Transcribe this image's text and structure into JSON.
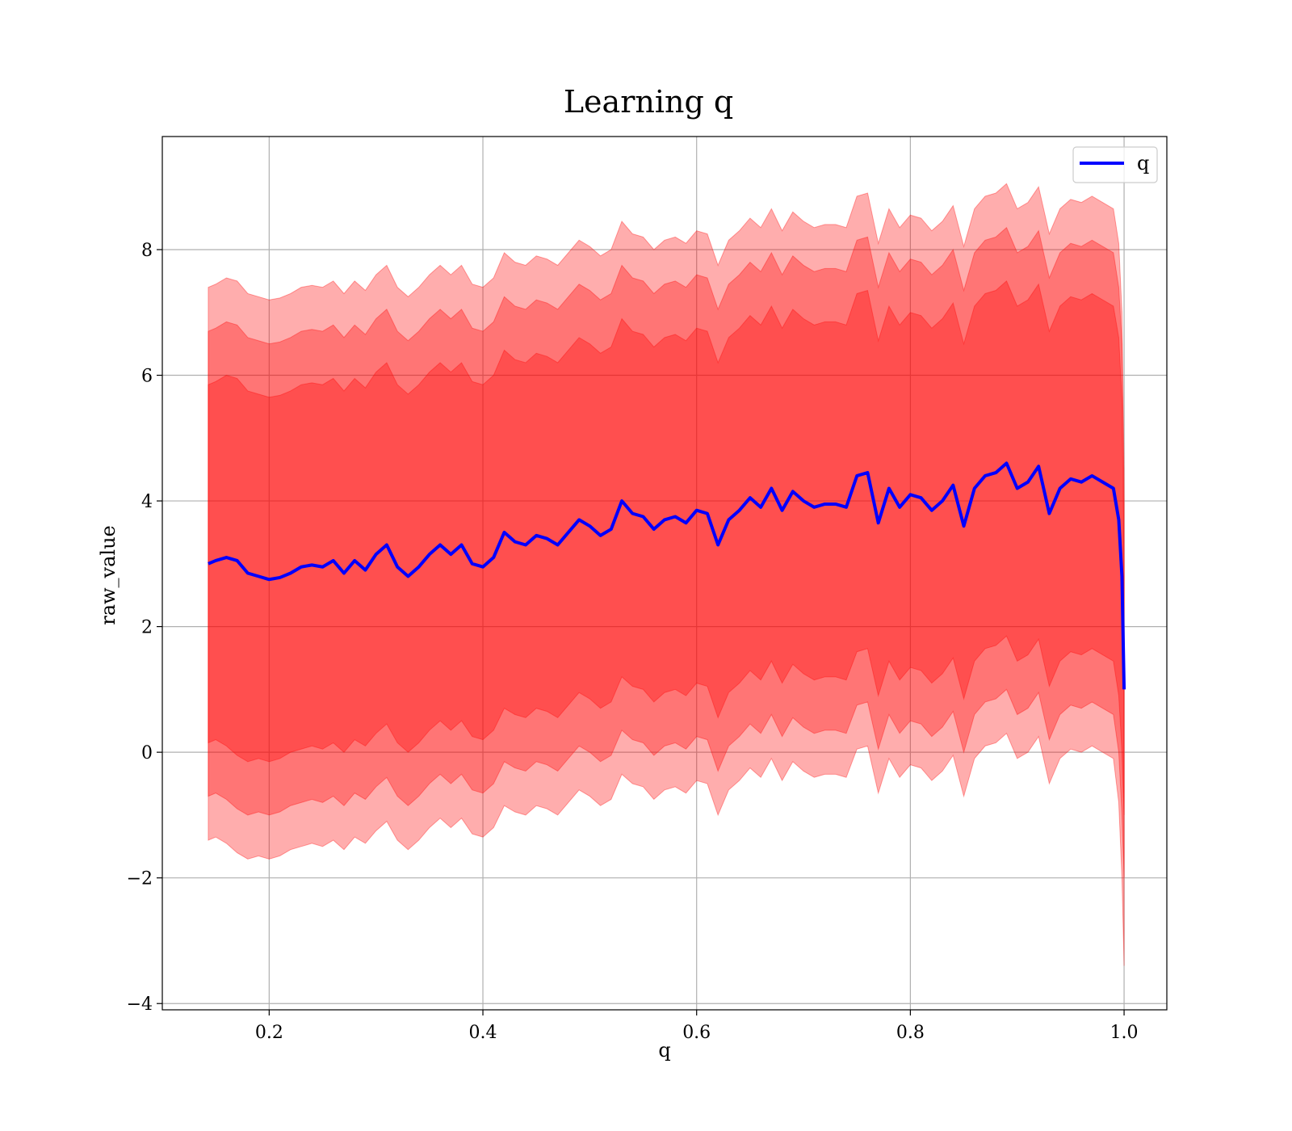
{
  "chart_data": {
    "type": "line",
    "title": "Learning q",
    "xlabel": "q",
    "ylabel": "raw_value",
    "xlim": [
      0.1,
      1.04
    ],
    "ylim": [
      -4.1,
      9.8
    ],
    "xticks": [
      0.2,
      0.4,
      0.6,
      0.8,
      1.0
    ],
    "xtick_labels": [
      "0.2",
      "0.4",
      "0.6",
      "0.8",
      "1.0"
    ],
    "yticks": [
      -4,
      -2,
      0,
      2,
      4,
      6,
      8
    ],
    "ytick_labels": [
      "−4",
      "−2",
      "0",
      "2",
      "4",
      "6",
      "8"
    ],
    "grid": true,
    "legend": {
      "position": "top-right",
      "entries": [
        "q"
      ]
    },
    "colors": {
      "line": "#0000ff",
      "band": "#ff0000",
      "band_edge": "#ff0000",
      "grid": "#b0b0b0"
    },
    "series": [
      {
        "name": "q",
        "x": [
          0.143,
          0.15,
          0.16,
          0.17,
          0.18,
          0.19,
          0.2,
          0.21,
          0.22,
          0.23,
          0.24,
          0.25,
          0.26,
          0.27,
          0.28,
          0.29,
          0.3,
          0.31,
          0.32,
          0.33,
          0.34,
          0.35,
          0.36,
          0.37,
          0.38,
          0.39,
          0.4,
          0.41,
          0.42,
          0.43,
          0.44,
          0.45,
          0.46,
          0.47,
          0.48,
          0.49,
          0.5,
          0.51,
          0.52,
          0.53,
          0.54,
          0.55,
          0.56,
          0.57,
          0.58,
          0.59,
          0.6,
          0.61,
          0.62,
          0.63,
          0.64,
          0.65,
          0.66,
          0.67,
          0.68,
          0.69,
          0.7,
          0.71,
          0.72,
          0.73,
          0.74,
          0.75,
          0.76,
          0.77,
          0.78,
          0.79,
          0.8,
          0.81,
          0.82,
          0.83,
          0.84,
          0.85,
          0.86,
          0.87,
          0.88,
          0.89,
          0.9,
          0.91,
          0.92,
          0.93,
          0.94,
          0.95,
          0.96,
          0.97,
          0.98,
          0.99,
          0.995,
          0.998,
          1.0
        ],
        "y": [
          3.0,
          3.05,
          3.1,
          3.05,
          2.85,
          2.8,
          2.75,
          2.78,
          2.85,
          2.95,
          2.98,
          2.95,
          3.05,
          2.85,
          3.05,
          2.9,
          3.15,
          3.3,
          2.95,
          2.8,
          2.95,
          3.15,
          3.3,
          3.15,
          3.3,
          3.0,
          2.95,
          3.1,
          3.5,
          3.35,
          3.3,
          3.45,
          3.4,
          3.3,
          3.5,
          3.7,
          3.6,
          3.45,
          3.55,
          4.0,
          3.8,
          3.75,
          3.55,
          3.7,
          3.75,
          3.65,
          3.85,
          3.8,
          3.3,
          3.7,
          3.85,
          4.05,
          3.9,
          4.2,
          3.85,
          4.15,
          4.0,
          3.9,
          3.95,
          3.95,
          3.9,
          4.4,
          4.45,
          3.65,
          4.2,
          3.9,
          4.1,
          4.05,
          3.85,
          4.0,
          4.25,
          3.6,
          4.2,
          4.4,
          4.45,
          4.6,
          4.2,
          4.3,
          4.55,
          3.8,
          4.2,
          4.35,
          4.3,
          4.4,
          4.3,
          4.2,
          3.7,
          2.8,
          1.0
        ],
        "bands": [
          {
            "lower": [
              0.15,
              0.2,
              0.1,
              -0.05,
              -0.15,
              -0.1,
              -0.15,
              -0.1,
              0.0,
              0.05,
              0.1,
              0.05,
              0.15,
              0.0,
              0.2,
              0.1,
              0.3,
              0.45,
              0.15,
              0.0,
              0.15,
              0.35,
              0.5,
              0.35,
              0.5,
              0.25,
              0.2,
              0.35,
              0.7,
              0.6,
              0.55,
              0.7,
              0.65,
              0.55,
              0.75,
              0.95,
              0.85,
              0.7,
              0.8,
              1.2,
              1.05,
              1.0,
              0.8,
              0.95,
              1.0,
              0.9,
              1.1,
              1.05,
              0.55,
              0.95,
              1.1,
              1.3,
              1.15,
              1.45,
              1.1,
              1.4,
              1.25,
              1.15,
              1.2,
              1.2,
              1.15,
              1.6,
              1.65,
              0.9,
              1.45,
              1.15,
              1.35,
              1.3,
              1.1,
              1.25,
              1.5,
              0.85,
              1.45,
              1.65,
              1.7,
              1.85,
              1.45,
              1.55,
              1.8,
              1.05,
              1.45,
              1.6,
              1.55,
              1.65,
              1.55,
              1.45,
              0.9,
              0.0,
              -1.0
            ],
            "upper": [
              5.85,
              5.9,
              6.0,
              5.95,
              5.75,
              5.7,
              5.65,
              5.68,
              5.75,
              5.85,
              5.88,
              5.85,
              5.95,
              5.75,
              5.95,
              5.8,
              6.05,
              6.2,
              5.85,
              5.7,
              5.85,
              6.05,
              6.2,
              6.05,
              6.2,
              5.9,
              5.85,
              6.0,
              6.4,
              6.25,
              6.2,
              6.35,
              6.3,
              6.2,
              6.4,
              6.6,
              6.5,
              6.35,
              6.45,
              6.9,
              6.7,
              6.65,
              6.45,
              6.6,
              6.65,
              6.55,
              6.75,
              6.7,
              6.2,
              6.6,
              6.75,
              6.95,
              6.8,
              7.1,
              6.75,
              7.05,
              6.9,
              6.8,
              6.85,
              6.85,
              6.8,
              7.3,
              7.35,
              6.55,
              7.1,
              6.8,
              7.0,
              6.95,
              6.75,
              6.9,
              7.15,
              6.5,
              7.1,
              7.3,
              7.35,
              7.5,
              7.1,
              7.2,
              7.45,
              6.7,
              7.1,
              7.25,
              7.2,
              7.3,
              7.2,
              7.1,
              6.6,
              5.6,
              3.0
            ]
          },
          {
            "lower": [
              -0.7,
              -0.65,
              -0.75,
              -0.9,
              -1.0,
              -0.95,
              -1.0,
              -0.95,
              -0.85,
              -0.8,
              -0.75,
              -0.8,
              -0.7,
              -0.85,
              -0.65,
              -0.75,
              -0.55,
              -0.4,
              -0.7,
              -0.85,
              -0.7,
              -0.5,
              -0.35,
              -0.5,
              -0.35,
              -0.6,
              -0.65,
              -0.5,
              -0.15,
              -0.25,
              -0.3,
              -0.15,
              -0.2,
              -0.3,
              -0.1,
              0.1,
              0.0,
              -0.15,
              -0.05,
              0.35,
              0.2,
              0.15,
              -0.05,
              0.1,
              0.15,
              0.05,
              0.25,
              0.2,
              -0.3,
              0.1,
              0.25,
              0.45,
              0.3,
              0.6,
              0.25,
              0.55,
              0.4,
              0.3,
              0.35,
              0.35,
              0.3,
              0.75,
              0.8,
              0.05,
              0.6,
              0.3,
              0.5,
              0.45,
              0.25,
              0.4,
              0.65,
              0.0,
              0.6,
              0.8,
              0.85,
              1.0,
              0.6,
              0.7,
              0.95,
              0.2,
              0.6,
              0.75,
              0.7,
              0.8,
              0.7,
              0.6,
              0.0,
              -1.0,
              -2.0
            ],
            "upper": [
              6.7,
              6.75,
              6.85,
              6.8,
              6.6,
              6.55,
              6.5,
              6.53,
              6.6,
              6.7,
              6.73,
              6.7,
              6.8,
              6.6,
              6.8,
              6.65,
              6.9,
              7.05,
              6.7,
              6.55,
              6.7,
              6.9,
              7.05,
              6.9,
              7.05,
              6.75,
              6.7,
              6.85,
              7.25,
              7.1,
              7.05,
              7.2,
              7.15,
              7.05,
              7.25,
              7.45,
              7.35,
              7.2,
              7.3,
              7.75,
              7.55,
              7.5,
              7.3,
              7.45,
              7.5,
              7.4,
              7.6,
              7.55,
              7.05,
              7.45,
              7.6,
              7.8,
              7.65,
              7.95,
              7.6,
              7.9,
              7.75,
              7.65,
              7.7,
              7.7,
              7.65,
              8.15,
              8.2,
              7.4,
              7.95,
              7.65,
              7.85,
              7.8,
              7.6,
              7.75,
              8.0,
              7.35,
              7.95,
              8.15,
              8.2,
              8.35,
              7.95,
              8.05,
              8.3,
              7.55,
              7.95,
              8.1,
              8.05,
              8.15,
              8.05,
              7.95,
              7.4,
              6.5,
              4.0
            ]
          },
          {
            "lower": [
              -1.4,
              -1.35,
              -1.45,
              -1.6,
              -1.7,
              -1.65,
              -1.7,
              -1.65,
              -1.55,
              -1.5,
              -1.45,
              -1.5,
              -1.4,
              -1.55,
              -1.35,
              -1.45,
              -1.25,
              -1.1,
              -1.4,
              -1.55,
              -1.4,
              -1.2,
              -1.05,
              -1.2,
              -1.05,
              -1.3,
              -1.35,
              -1.2,
              -0.85,
              -0.95,
              -1.0,
              -0.85,
              -0.9,
              -1.0,
              -0.8,
              -0.6,
              -0.7,
              -0.85,
              -0.75,
              -0.35,
              -0.5,
              -0.55,
              -0.75,
              -0.6,
              -0.55,
              -0.65,
              -0.45,
              -0.5,
              -1.0,
              -0.6,
              -0.45,
              -0.25,
              -0.4,
              -0.1,
              -0.45,
              -0.15,
              -0.3,
              -0.4,
              -0.35,
              -0.35,
              -0.4,
              0.05,
              0.1,
              -0.65,
              -0.1,
              -0.4,
              -0.2,
              -0.25,
              -0.45,
              -0.3,
              -0.05,
              -0.7,
              -0.1,
              0.1,
              0.15,
              0.3,
              -0.1,
              0.0,
              0.25,
              -0.5,
              -0.1,
              0.05,
              0.0,
              0.1,
              0.0,
              -0.1,
              -0.8,
              -2.0,
              -3.4
            ],
            "upper": [
              7.4,
              7.45,
              7.55,
              7.5,
              7.3,
              7.25,
              7.2,
              7.23,
              7.3,
              7.4,
              7.43,
              7.4,
              7.5,
              7.3,
              7.5,
              7.35,
              7.6,
              7.75,
              7.4,
              7.25,
              7.4,
              7.6,
              7.75,
              7.6,
              7.75,
              7.45,
              7.4,
              7.55,
              7.95,
              7.8,
              7.75,
              7.9,
              7.85,
              7.75,
              7.95,
              8.15,
              8.05,
              7.9,
              8.0,
              8.45,
              8.25,
              8.2,
              8.0,
              8.15,
              8.2,
              8.1,
              8.3,
              8.25,
              7.75,
              8.15,
              8.3,
              8.5,
              8.35,
              8.65,
              8.3,
              8.6,
              8.45,
              8.35,
              8.4,
              8.4,
              8.35,
              8.85,
              8.9,
              8.1,
              8.65,
              8.35,
              8.55,
              8.5,
              8.3,
              8.45,
              8.7,
              8.05,
              8.65,
              8.85,
              8.9,
              9.05,
              8.65,
              8.75,
              9.0,
              8.25,
              8.65,
              8.8,
              8.75,
              8.85,
              8.75,
              8.65,
              8.1,
              7.0,
              4.5
            ]
          }
        ]
      }
    ]
  }
}
